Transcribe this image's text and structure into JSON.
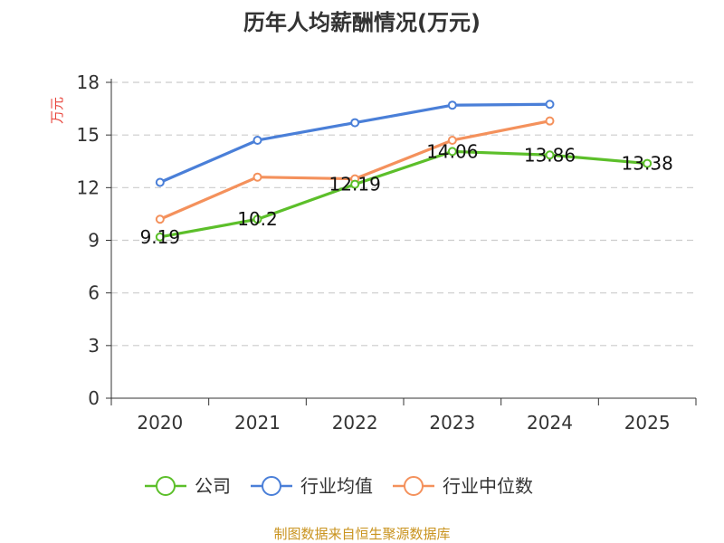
{
  "chart_data": {
    "type": "line",
    "title": "历年人均薪酬情况(万元)",
    "ylabel": "万元",
    "ylim": [
      0,
      18
    ],
    "yticks": [
      0,
      3,
      6,
      9,
      12,
      15,
      18
    ],
    "grid": true,
    "legend_position": "bottom",
    "categories": [
      "2020",
      "2021",
      "2022",
      "2023",
      "2024",
      "2025"
    ],
    "series": [
      {
        "name": "公司",
        "color": "#5cbf2a",
        "values": [
          9.19,
          10.2,
          12.19,
          14.06,
          13.86,
          13.38
        ],
        "labeled": true
      },
      {
        "name": "行业均值",
        "color": "#4a7fd8",
        "values": [
          12.3,
          14.7,
          15.7,
          16.7,
          16.75,
          null
        ],
        "labeled": false
      },
      {
        "name": "行业中位数",
        "color": "#f4915c",
        "values": [
          10.2,
          12.6,
          12.5,
          14.7,
          15.8,
          null
        ],
        "labeled": false
      }
    ]
  },
  "source": "制图数据来自恒生聚源数据库",
  "colors": {
    "axis": "#333333",
    "grid": "#cccccc",
    "ylabel": "#e8453c",
    "source": "#c9931e"
  }
}
